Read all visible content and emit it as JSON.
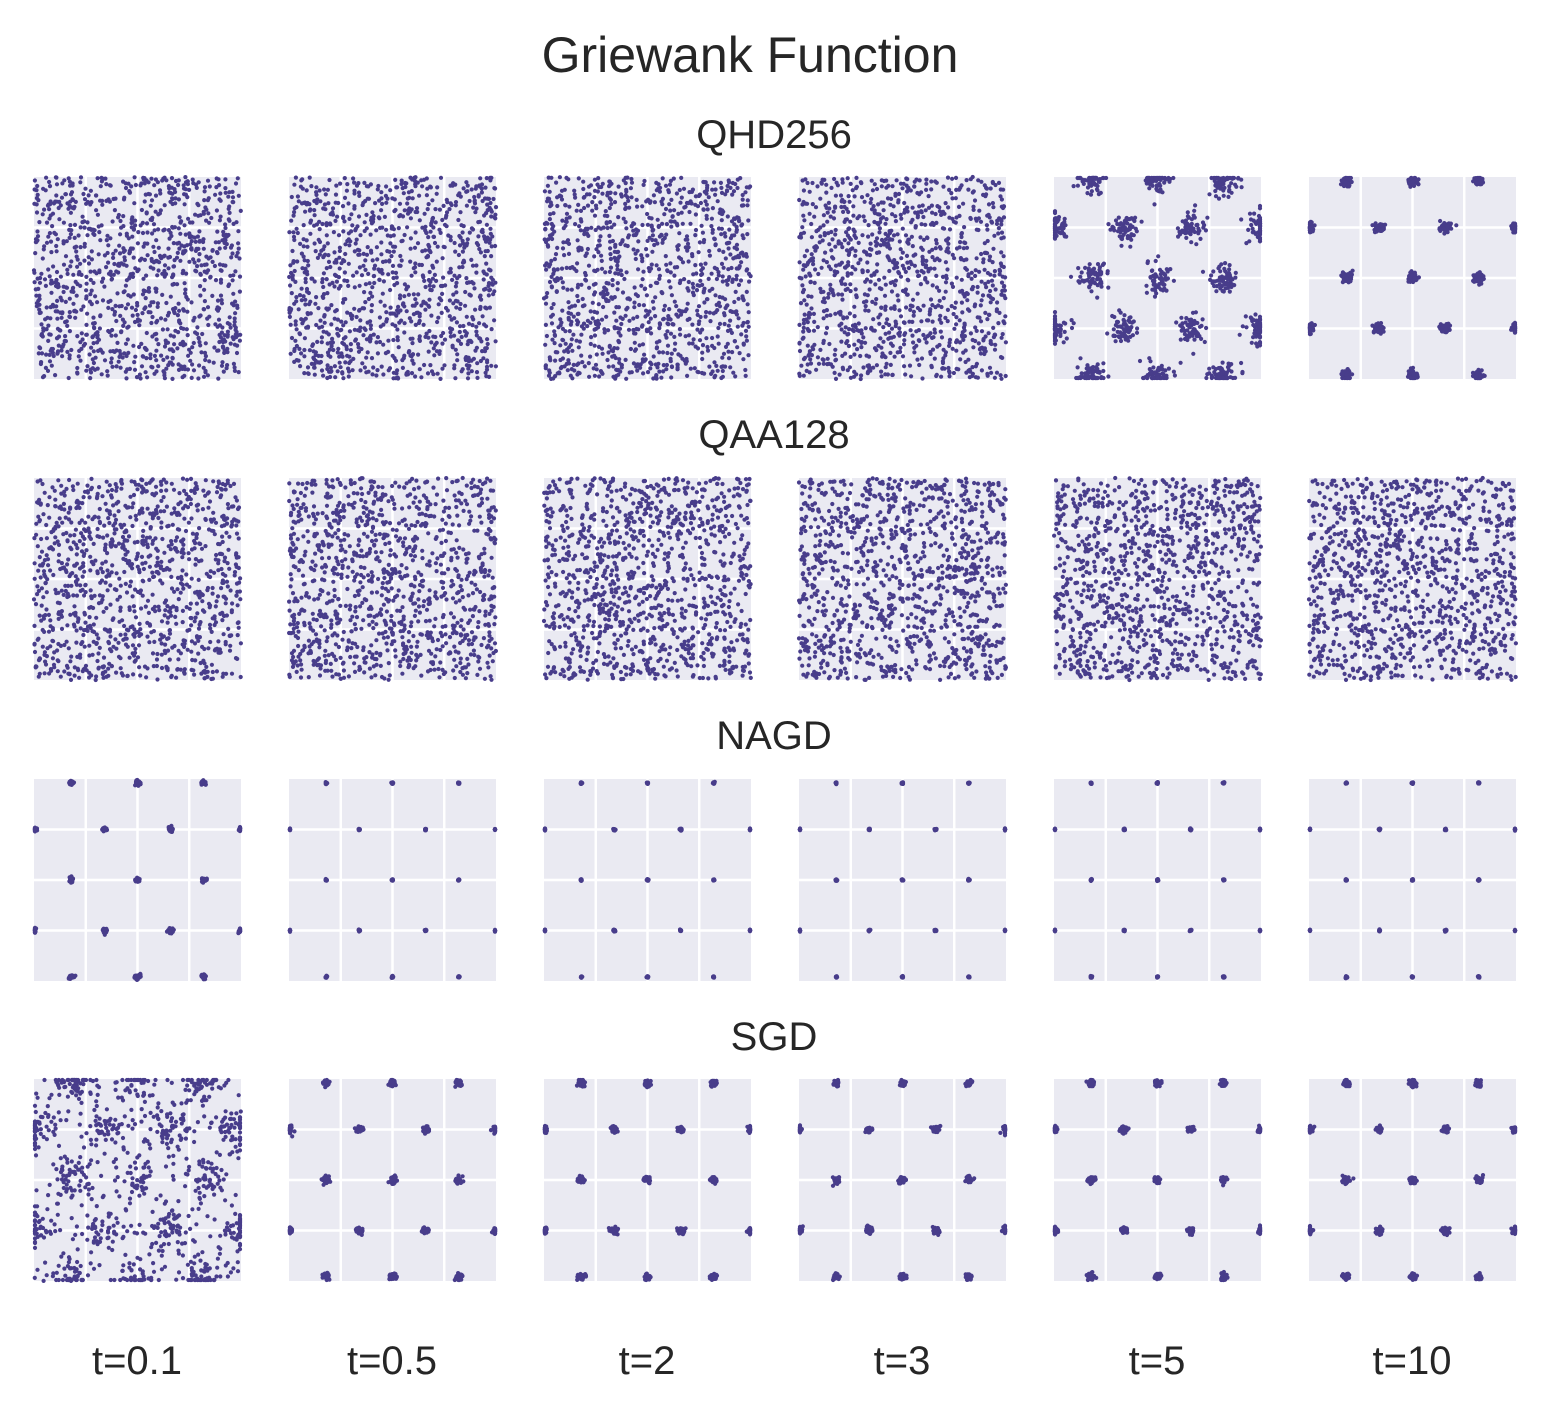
{
  "figure_title": "Griewank Function",
  "column_labels": [
    "t=0.1",
    "t=0.5",
    "t=2",
    "t=3",
    "t=5",
    "t=10"
  ],
  "colors": {
    "points": "#483d8b",
    "panel_bg": "#eaeaf2",
    "grid": "#ffffff",
    "text": "#262626"
  },
  "chart_data": {
    "type": "scatter",
    "title": "Griewank Function",
    "xlim": [
      0,
      1
    ],
    "ylim": [
      0,
      1
    ],
    "grid": true,
    "legend": "none",
    "gridlines": [
      0.25,
      0.5,
      0.75
    ],
    "panels": [
      {
        "row": "QHD256",
        "kind": "uniform",
        "count": 1100
      },
      {
        "row": "QHD256",
        "kind": "uniform",
        "count": 1100
      },
      {
        "row": "QHD256",
        "kind": "uniform",
        "count": 1100
      },
      {
        "row": "QHD256",
        "kind": "uniform",
        "count": 1100
      },
      {
        "row": "QHD256",
        "kind": "clusters",
        "spread": 0.035,
        "count": 1000
      },
      {
        "row": "QHD256",
        "kind": "clusters",
        "spread": 0.012,
        "count": 900
      },
      {
        "row": "QAA128",
        "kind": "uniform",
        "count": 1100
      },
      {
        "row": "QAA128",
        "kind": "uniform",
        "count": 1100
      },
      {
        "row": "QAA128",
        "kind": "uniform",
        "count": 1100
      },
      {
        "row": "QAA128",
        "kind": "uniform",
        "count": 1100
      },
      {
        "row": "QAA128",
        "kind": "uniform",
        "count": 1100
      },
      {
        "row": "QAA128",
        "kind": "uniform",
        "count": 1100
      },
      {
        "row": "NAGD",
        "kind": "clusters",
        "spread": 0.006,
        "count": 500
      },
      {
        "row": "NAGD",
        "kind": "clusters",
        "spread": 0.002,
        "count": 300
      },
      {
        "row": "NAGD",
        "kind": "clusters",
        "spread": 0.002,
        "count": 300
      },
      {
        "row": "NAGD",
        "kind": "clusters",
        "spread": 0.002,
        "count": 300
      },
      {
        "row": "NAGD",
        "kind": "clusters",
        "spread": 0.002,
        "count": 300
      },
      {
        "row": "NAGD",
        "kind": "clusters",
        "spread": 0.002,
        "count": 300
      },
      {
        "row": "SGD",
        "kind": "mixed",
        "spread": 0.05,
        "count": 1000
      },
      {
        "row": "SGD",
        "kind": "clusters",
        "spread": 0.008,
        "count": 700
      },
      {
        "row": "SGD",
        "kind": "clusters",
        "spread": 0.008,
        "count": 700
      },
      {
        "row": "SGD",
        "kind": "clusters",
        "spread": 0.008,
        "count": 700
      },
      {
        "row": "SGD",
        "kind": "clusters",
        "spread": 0.008,
        "count": 700
      },
      {
        "row": "SGD",
        "kind": "clusters",
        "spread": 0.008,
        "count": 700
      }
    ],
    "cluster_centers": [
      [
        0.18,
        0.02
      ],
      [
        0.5,
        0.02
      ],
      [
        0.82,
        0.02
      ],
      [
        0.0,
        0.25
      ],
      [
        0.34,
        0.25
      ],
      [
        0.66,
        0.25
      ],
      [
        1.0,
        0.25
      ],
      [
        0.18,
        0.5
      ],
      [
        0.5,
        0.5
      ],
      [
        0.82,
        0.5
      ],
      [
        0.0,
        0.75
      ],
      [
        0.34,
        0.75
      ],
      [
        0.66,
        0.75
      ],
      [
        1.0,
        0.75
      ],
      [
        0.18,
        0.98
      ],
      [
        0.5,
        0.98
      ],
      [
        0.82,
        0.98
      ]
    ]
  }
}
